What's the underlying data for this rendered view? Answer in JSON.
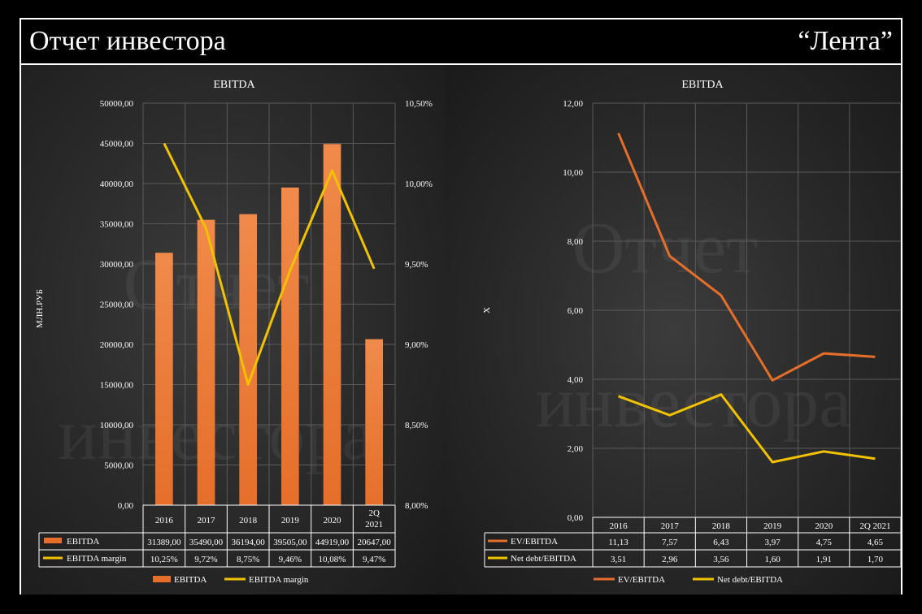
{
  "header": {
    "title": "Отчет инвестора",
    "brand": "“Лента”"
  },
  "watermark": {
    "line1": "Отчет",
    "line2": "инвестора"
  },
  "colors": {
    "orange": "#E56F2A",
    "orange_light": "#F08A4B",
    "yellow": "#F2C200",
    "grid": "#5a5a5a",
    "text": "#ffffff"
  },
  "chart_data": [
    {
      "type": "bar",
      "title": "EBITDA",
      "ylabel": "МЛН.РУБ",
      "categories": [
        "2016",
        "2017",
        "2018",
        "2019",
        "2020",
        "2Q 2021"
      ],
      "ylim": [
        0,
        50000
      ],
      "y_ticks": [
        "0,00",
        "5000,00",
        "10000,00",
        "15000,00",
        "20000,00",
        "25000,00",
        "30000,00",
        "35000,00",
        "40000,00",
        "45000,00",
        "50000,00"
      ],
      "y2lim": [
        8.0,
        10.5
      ],
      "y2_ticks": [
        "8,00%",
        "8,50%",
        "9,00%",
        "9,50%",
        "10,00%",
        "10,50%"
      ],
      "series": [
        {
          "name": "EBITDA",
          "kind": "bar",
          "axis": "left",
          "values": [
            31389,
            35490,
            36194,
            39505,
            44919,
            20647
          ],
          "labels": [
            "31389,00",
            "35490,00",
            "36194,00",
            "39505,00",
            "44919,00",
            "20647,00"
          ]
        },
        {
          "name": "EBITDA margin",
          "kind": "line",
          "axis": "right",
          "values": [
            10.25,
            9.72,
            8.75,
            9.46,
            10.08,
            9.47
          ],
          "labels": [
            "10,25%",
            "9,72%",
            "8,75%",
            "9,46%",
            "10,08%",
            "9,47%"
          ]
        }
      ]
    },
    {
      "type": "line",
      "title": "EBITDA",
      "ylabel": "X",
      "categories": [
        "2016",
        "2017",
        "2018",
        "2019",
        "2020",
        "2Q 2021"
      ],
      "ylim": [
        0,
        12
      ],
      "y_ticks": [
        "0,00",
        "2,00",
        "4,00",
        "6,00",
        "8,00",
        "10,00",
        "12,00"
      ],
      "series": [
        {
          "name": "EV/EBITDA",
          "values": [
            11.13,
            7.57,
            6.43,
            3.97,
            4.75,
            4.65
          ],
          "labels": [
            "11,13",
            "7,57",
            "6,43",
            "3,97",
            "4,75",
            "4,65"
          ]
        },
        {
          "name": "Net debt/EBITDA",
          "values": [
            3.51,
            2.96,
            3.56,
            1.6,
            1.91,
            1.7
          ],
          "labels": [
            "3,51",
            "2,96",
            "3,56",
            "1,60",
            "1,91",
            "1,70"
          ]
        }
      ]
    }
  ]
}
